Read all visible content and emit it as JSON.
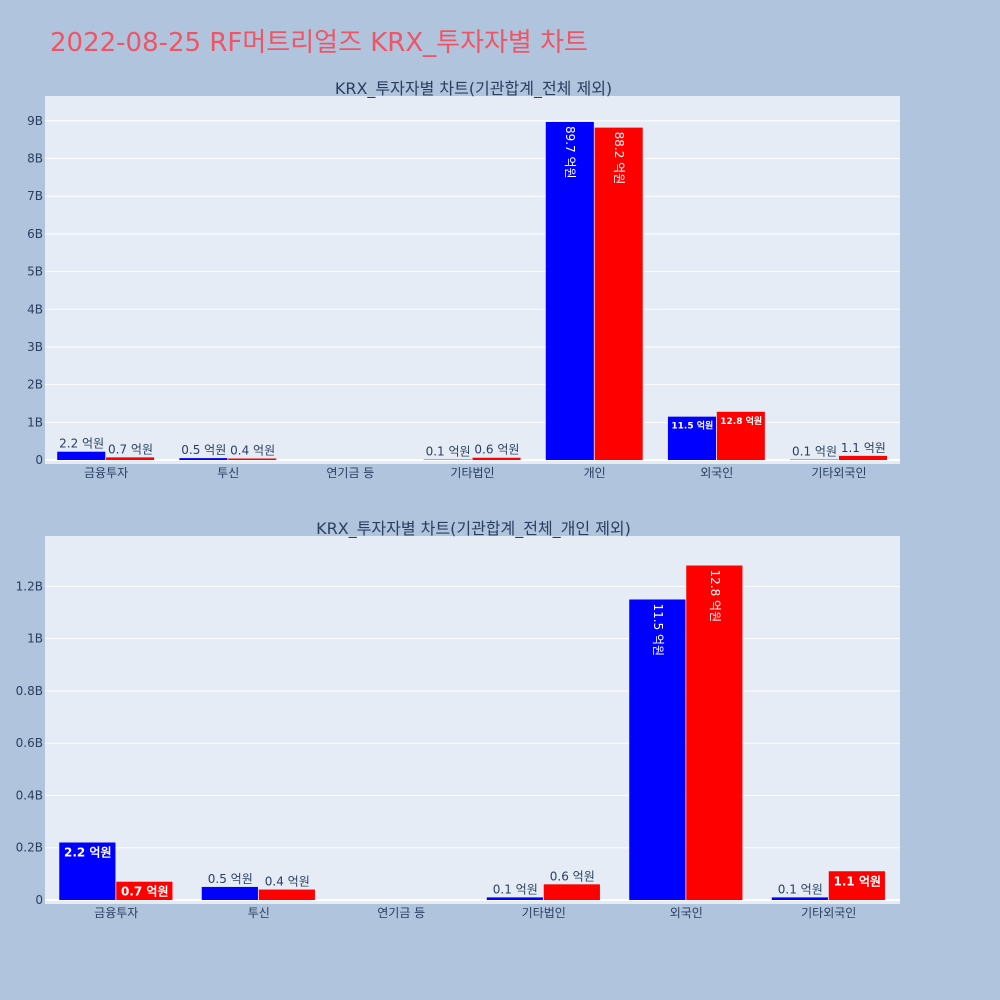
{
  "page_title": "2022-08-25 RF머트리얼즈 KRX_투자자별 차트",
  "colors": {
    "series_1": "#0000ff",
    "series_2": "#ff0000",
    "page_bg": "#b0c4de",
    "plot_bg": "#e5ecf6",
    "title": "#ef5565"
  },
  "chart_data": [
    {
      "type": "bar",
      "title": "KRX_투자자별 차트(기관합계_전체 제외)",
      "xlabel": "",
      "ylabel": "",
      "categories": [
        "금융투자",
        "투신",
        "연기금 등",
        "기타법인",
        "개인",
        "외국인",
        "기타외국인"
      ],
      "ylim": [
        0,
        9500000000
      ],
      "yticks": [
        0,
        1000000000,
        2000000000,
        3000000000,
        4000000000,
        5000000000,
        6000000000,
        7000000000,
        8000000000,
        9000000000
      ],
      "ytick_labels": [
        "0",
        "1B",
        "2B",
        "3B",
        "4B",
        "5B",
        "6B",
        "7B",
        "8B",
        "9B"
      ],
      "grid": true,
      "series": [
        {
          "values": [
            220000000,
            50000000,
            0,
            10000000,
            8970000000,
            1150000000,
            10000000
          ],
          "labels": [
            "2.2 억원",
            "0.5 억원",
            "",
            "0.1 억원",
            "89.7 억원",
            "11.5 억원",
            "0.1 억원"
          ]
        },
        {
          "values": [
            70000000,
            40000000,
            0,
            60000000,
            8820000000,
            1280000000,
            110000000
          ],
          "labels": [
            "0.7 억원",
            "0.4 억원",
            "",
            "0.6 억원",
            "88.2 억원",
            "12.8 억원",
            "1.1 억원"
          ]
        }
      ]
    },
    {
      "type": "bar",
      "title": "KRX_투자자별 차트(기관합계_전체_개인 제외)",
      "xlabel": "",
      "ylabel": "",
      "categories": [
        "금융투자",
        "투신",
        "연기금 등",
        "기타법인",
        "외국인",
        "기타외국인"
      ],
      "ylim": [
        0,
        1370000000
      ],
      "yticks": [
        0,
        200000000,
        400000000,
        600000000,
        800000000,
        1000000000,
        1200000000
      ],
      "ytick_labels": [
        "0",
        "0.2B",
        "0.4B",
        "0.6B",
        "0.8B",
        "1B",
        "1.2B"
      ],
      "grid": true,
      "series": [
        {
          "values": [
            220000000,
            50000000,
            0,
            10000000,
            1150000000,
            10000000
          ],
          "labels": [
            "2.2 억원",
            "0.5 억원",
            "",
            "0.1 억원",
            "11.5 억원",
            "0.1 억원"
          ]
        },
        {
          "values": [
            70000000,
            40000000,
            0,
            60000000,
            1280000000,
            110000000
          ],
          "labels": [
            "0.7 억원",
            "0.4 억원",
            "",
            "0.6 억원",
            "12.8 억원",
            "1.1 억원"
          ]
        }
      ]
    }
  ]
}
